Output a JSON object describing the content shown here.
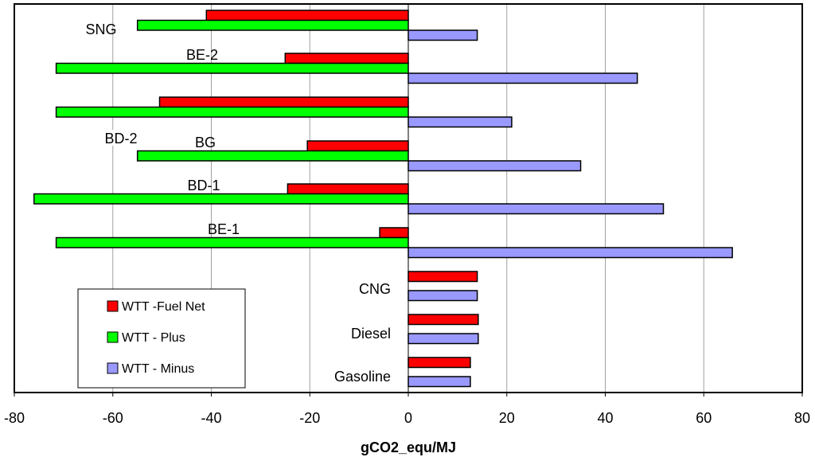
{
  "chart_data": {
    "type": "bar",
    "orientation": "horizontal",
    "title": "",
    "xlabel": "gCO2_equ/MJ",
    "ylabel": "",
    "xlim": [
      -80,
      80
    ],
    "xticks": [
      -80,
      -60,
      -40,
      -20,
      0,
      20,
      40,
      60,
      80
    ],
    "grid": "vertical",
    "legend_position": "bottom-left",
    "colors": {
      "fuel_net": "#ff0000",
      "plus": "#00ff00",
      "minus": "#9999ff",
      "bar_edge": "#000000",
      "grid": "#a0a0a0"
    },
    "legend": [
      {
        "key": "fuel_net",
        "label": "WTT -Fuel Net"
      },
      {
        "key": "plus",
        "label": "WTT - Plus"
      },
      {
        "key": "minus",
        "label": "WTT - Minus"
      }
    ],
    "categories": [
      {
        "name": "SNG",
        "fuel_net": -41,
        "plus": -55,
        "minus": 14
      },
      {
        "name": "BE-2",
        "fuel_net": -25,
        "plus": -71.5,
        "minus": 46.5
      },
      {
        "name": "BD-2",
        "fuel_net": -50.5,
        "plus": -71.5,
        "minus": 21
      },
      {
        "name": "BG",
        "fuel_net": -20.5,
        "plus": -55,
        "minus": 35
      },
      {
        "name": "BD-1",
        "fuel_net": -24.5,
        "plus": -76,
        "minus": 51.8
      },
      {
        "name": "BE-1",
        "fuel_net": -5.8,
        "plus": -71.5,
        "minus": 65.8
      },
      {
        "name": "CNG",
        "fuel_net": 14,
        "plus": null,
        "minus": 14
      },
      {
        "name": "Diesel",
        "fuel_net": 14.2,
        "plus": null,
        "minus": 14.2
      },
      {
        "name": "Gasoline",
        "fuel_net": 12.6,
        "plus": null,
        "minus": 12.6
      }
    ]
  }
}
